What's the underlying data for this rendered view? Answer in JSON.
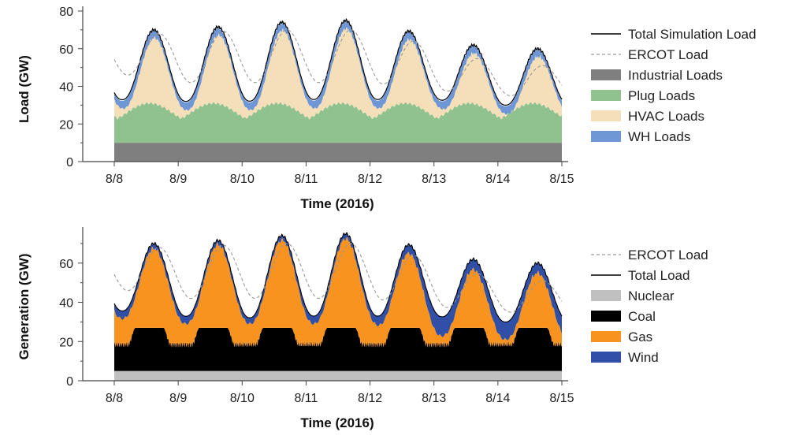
{
  "chart_data": [
    {
      "type": "area",
      "xlabel": "Time (2016)",
      "ylabel": "Load (GW)",
      "xlim": [
        0,
        7
      ],
      "ylim": [
        0,
        80
      ],
      "x_ticks": [
        "8/8",
        "8/9",
        "8/10",
        "8/11",
        "8/12",
        "8/13",
        "8/14",
        "8/15"
      ],
      "y_ticks": [
        0,
        20,
        40,
        60,
        80
      ],
      "grid": false,
      "legend_position": "right",
      "colors": {
        "industrial": "#7f7f7f",
        "plug": "#8fc28f",
        "hvac": "#f5dfb8",
        "wh": "#6f97d6",
        "total": "#000000",
        "ercot": "#999999"
      },
      "legend": [
        "Total Simulation Load",
        "ERCOT Load",
        "Industrial Loads",
        "Plug Loads",
        "HVAC Loads",
        "WH Loads"
      ],
      "daily_peaks": {
        "total": [
          70,
          70,
          73,
          75,
          75,
          64,
          60
        ],
        "ercot": [
          68,
          68,
          70,
          70,
          70,
          60,
          51
        ]
      },
      "daily_valleys": {
        "total": [
          33,
          32,
          32,
          33,
          33,
          33,
          30
        ],
        "ercot": [
          47,
          42,
          42,
          42,
          42,
          38,
          35
        ]
      },
      "series": [
        {
          "name": "Industrial Loads",
          "baseline": 10
        },
        {
          "name": "Plug Loads",
          "range": [
            23,
            31
          ]
        },
        {
          "name": "HVAC Loads"
        },
        {
          "name": "WH Loads"
        }
      ]
    },
    {
      "type": "area",
      "xlabel": "Time (2016)",
      "ylabel": "Generation (GW)",
      "xlim": [
        0,
        7
      ],
      "ylim": [
        0,
        76
      ],
      "x_ticks": [
        "8/8",
        "8/9",
        "8/10",
        "8/11",
        "8/12",
        "8/13",
        "8/14",
        "8/15"
      ],
      "y_ticks": [
        0,
        20,
        40,
        60
      ],
      "grid": false,
      "legend_position": "right",
      "colors": {
        "nuclear": "#c0c0c0",
        "coal": "#000000",
        "gas": "#f7931e",
        "wind": "#3050a8",
        "total": "#000000",
        "ercot": "#999999"
      },
      "legend": [
        "ERCOT Load",
        "Total Load",
        "Nuclear",
        "Coal",
        "Gas",
        "Wind"
      ],
      "daily_peaks": {
        "total": [
          70,
          70,
          73,
          75,
          75,
          64,
          60
        ],
        "ercot": [
          68,
          68,
          70,
          70,
          70,
          60,
          51
        ]
      },
      "series": [
        {
          "name": "Nuclear",
          "baseline": 5
        },
        {
          "name": "Coal",
          "range": [
            16,
            27
          ]
        },
        {
          "name": "Gas"
        },
        {
          "name": "Wind"
        }
      ]
    }
  ]
}
